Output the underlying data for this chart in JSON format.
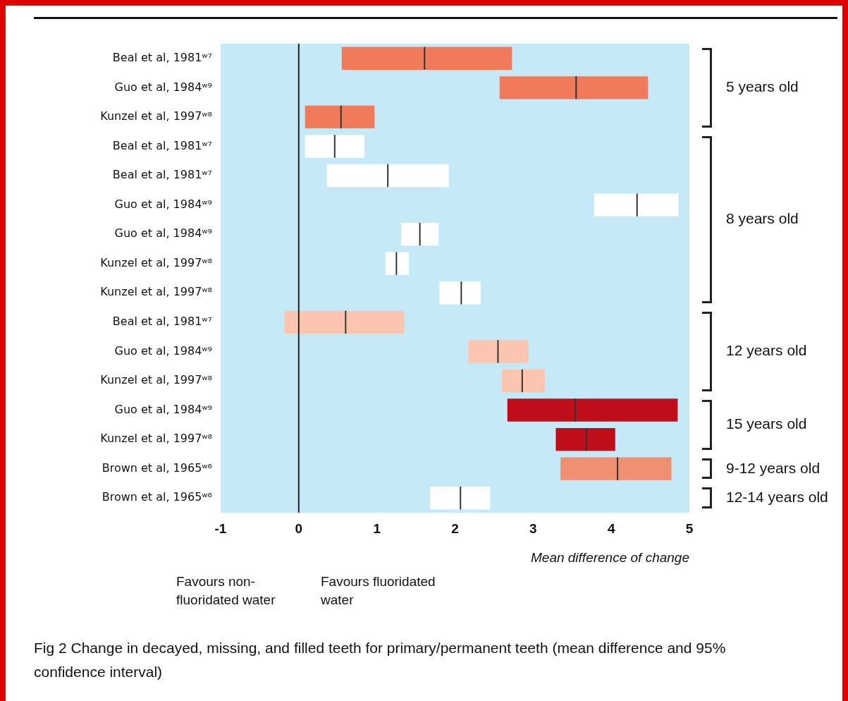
{
  "chart_data": {
    "type": "box",
    "orientation": "horizontal",
    "categories": [
      "Beal et al, 1981ʷ⁷",
      "Guo et al, 1984ʷ⁹",
      "Kunzel et al, 1997ʷ⁸",
      "Beal et al, 1981ʷ⁷",
      "Beal et al, 1981ʷ⁷",
      "Guo et al, 1984ʷ⁹",
      "Guo et al, 1984ʷ⁹",
      "Kunzel et al, 1997ʷ⁸",
      "Kunzel et al, 1997ʷ⁸",
      "Beal et al, 1981ʷ⁷",
      "Guo et al, 1984ʷ⁹",
      "Kunzel et al, 1997ʷ⁸",
      "Guo et al, 1984ʷ⁹",
      "Kunzel et al, 1997ʷ⁸",
      "Brown et al, 1965ʷ⁶",
      "Brown et al, 1965ʷ⁶"
    ],
    "series": [
      {
        "colors": [
          "#f07a5a",
          "#f07a5a",
          "#f07a5a",
          "#ffffff",
          "#ffffff",
          "#ffffff",
          "#ffffff",
          "#ffffff",
          "#ffffff",
          "#fcc5b0",
          "#fcc5b0",
          "#fcc5b0",
          "#c00d1a",
          "#c00d1a",
          "#f08e70",
          "#ffffff"
        ],
        "boxes": [
          {
            "low": 0.55,
            "q1": 0.55,
            "median": 1.61,
            "q3": 2.73,
            "high": 2.73
          },
          {
            "low": 2.57,
            "q1": 2.57,
            "median": 3.55,
            "q3": 4.47,
            "high": 4.47
          },
          {
            "low": 0.08,
            "q1": 0.08,
            "median": 0.54,
            "q3": 0.97,
            "high": 0.97
          },
          {
            "low": 0.08,
            "q1": 0.08,
            "median": 0.46,
            "q3": 0.84,
            "high": 0.84
          },
          {
            "low": 0.36,
            "q1": 0.36,
            "median": 1.14,
            "q3": 1.92,
            "high": 1.92
          },
          {
            "low": 3.78,
            "q1": 3.78,
            "median": 4.33,
            "q3": 4.86,
            "high": 4.86
          },
          {
            "low": 1.31,
            "q1": 1.31,
            "median": 1.55,
            "q3": 1.79,
            "high": 1.79
          },
          {
            "low": 1.11,
            "q1": 1.11,
            "median": 1.25,
            "q3": 1.41,
            "high": 1.41
          },
          {
            "low": 1.8,
            "q1": 1.8,
            "median": 2.08,
            "q3": 2.33,
            "high": 2.33
          },
          {
            "low": -0.18,
            "q1": -0.18,
            "median": 0.6,
            "q3": 1.35,
            "high": 1.35
          },
          {
            "low": 2.17,
            "q1": 2.17,
            "median": 2.55,
            "q3": 2.94,
            "high": 2.94
          },
          {
            "low": 2.6,
            "q1": 2.6,
            "median": 2.86,
            "q3": 3.15,
            "high": 3.15
          },
          {
            "low": 2.67,
            "q1": 2.67,
            "median": 3.54,
            "q3": 4.85,
            "high": 4.85
          },
          {
            "low": 3.29,
            "q1": 3.29,
            "median": 3.68,
            "q3": 4.05,
            "high": 4.05
          },
          {
            "low": 3.35,
            "q1": 3.35,
            "median": 4.08,
            "q3": 4.77,
            "high": 4.77
          },
          {
            "low": 1.68,
            "q1": 1.68,
            "median": 2.07,
            "q3": 2.45,
            "high": 2.45
          }
        ]
      }
    ],
    "xlim": [
      -1,
      5
    ],
    "xticks": [
      -1,
      0,
      1,
      2,
      3,
      4,
      5
    ],
    "xlabel": "Mean difference of change",
    "ref_lines": [
      {
        "axis": "x",
        "value": 0,
        "color": "#222222"
      }
    ],
    "grid": false,
    "legend": false,
    "annotations": [
      "5 years old",
      "8 years old",
      "12 years old",
      "15 years old",
      "9-12 years old",
      "12-14 years old",
      "Favours non-fluoridated water",
      "Favours fluoridated water",
      "Fig 2 Change in decayed, missing, and filled teeth for primary/permanent teeth (mean difference and 95% confidence interval)"
    ]
  }
}
